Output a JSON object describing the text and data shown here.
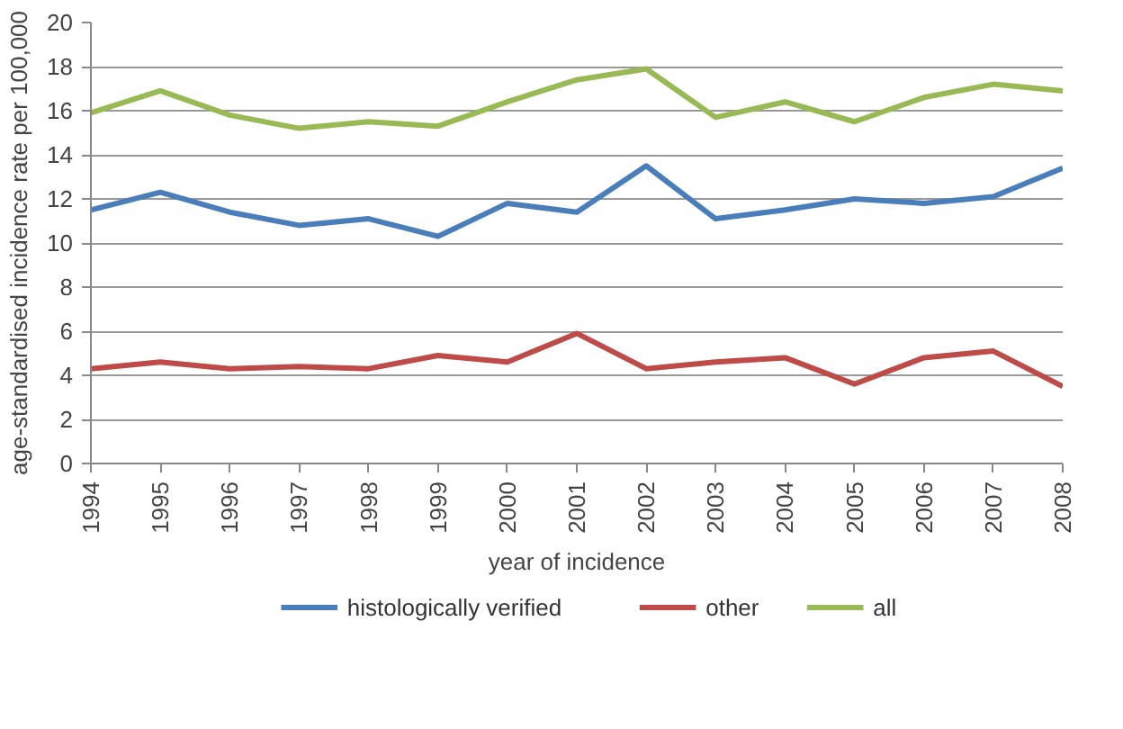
{
  "chart_data": {
    "type": "line",
    "xlabel": "year of incidence",
    "ylabel": "age-standardised incidence rate per 100,000",
    "x": [
      1994,
      1995,
      1996,
      1997,
      1998,
      1999,
      2000,
      2001,
      2002,
      2003,
      2004,
      2005,
      2006,
      2007,
      2008
    ],
    "xlim": [
      1994,
      2008
    ],
    "xticks": [
      1994,
      1995,
      1996,
      1997,
      1998,
      1999,
      2000,
      2001,
      2002,
      2003,
      2004,
      2005,
      2006,
      2007,
      2008
    ],
    "ylim": [
      0,
      20
    ],
    "yticks": [
      0,
      2,
      4,
      6,
      8,
      10,
      12,
      14,
      16,
      18,
      20
    ],
    "grid": "y",
    "legend": "bottom",
    "marker": "none",
    "line_style": "solid",
    "series": [
      {
        "name": "histologically verified",
        "color": "#4a7ebb",
        "values": [
          11.5,
          12.3,
          11.4,
          10.8,
          11.1,
          10.3,
          11.8,
          11.4,
          13.5,
          11.1,
          11.5,
          12.0,
          11.8,
          12.1,
          13.4
        ]
      },
      {
        "name": "other",
        "color": "#be4b48",
        "values": [
          4.3,
          4.6,
          4.3,
          4.4,
          4.3,
          4.9,
          4.6,
          5.9,
          4.3,
          4.6,
          4.8,
          3.6,
          4.8,
          5.1,
          3.5
        ]
      },
      {
        "name": "all",
        "color": "#98b954",
        "values": [
          15.9,
          16.9,
          15.8,
          15.2,
          15.5,
          15.3,
          16.4,
          17.4,
          17.9,
          15.7,
          16.4,
          15.5,
          16.6,
          17.2,
          16.9
        ]
      }
    ]
  }
}
